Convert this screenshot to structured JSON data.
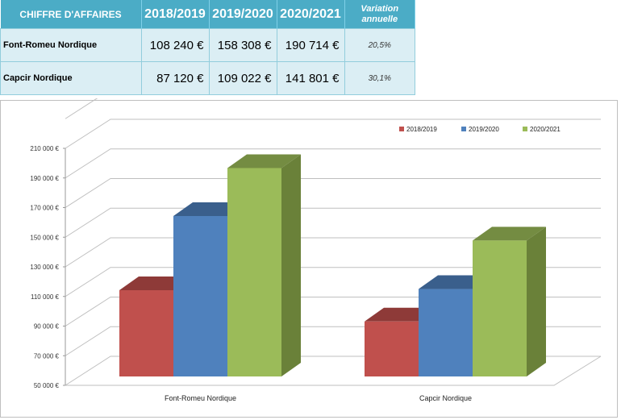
{
  "table": {
    "headers": [
      "CHIFFRE D'AFFAIRES",
      "2018/2019",
      "2019/2020",
      "2020/2021",
      "Variation annuelle"
    ],
    "rows": [
      {
        "name": "Font-Romeu Nordique",
        "values": [
          "108 240 €",
          "158 308 €",
          "190 714 €"
        ],
        "variation": "20,5%"
      },
      {
        "name": "Capcir Nordique",
        "values": [
          "87 120 €",
          "109 022 €",
          "141 801 €"
        ],
        "variation": "30,1%"
      }
    ]
  },
  "chart_data": {
    "type": "bar",
    "style": "3d-clustered",
    "categories": [
      "Font-Romeu Nordique",
      "Capcir Nordique"
    ],
    "series": [
      {
        "name": "2018/2019",
        "values": [
          108240,
          87120
        ],
        "color": "#c0504d",
        "top": "#8e3a38",
        "side": "#9b3f3d"
      },
      {
        "name": "2019/2020",
        "values": [
          158308,
          109022
        ],
        "color": "#4f81bd",
        "top": "#3a5f8c",
        "side": "#3b6190"
      },
      {
        "name": "2020/2021",
        "values": [
          190714,
          141801
        ],
        "color": "#9bbb59",
        "top": "#748c42",
        "side": "#6a8139"
      }
    ],
    "yticks": [
      "50 000 €",
      "70 000 €",
      "90 000 €",
      "110 000 €",
      "130 000 €",
      "150 000 €",
      "170 000 €",
      "190 000 €",
      "210 000 €"
    ],
    "ylim": [
      50000,
      230000
    ],
    "grid": true,
    "legend": "top-right"
  }
}
